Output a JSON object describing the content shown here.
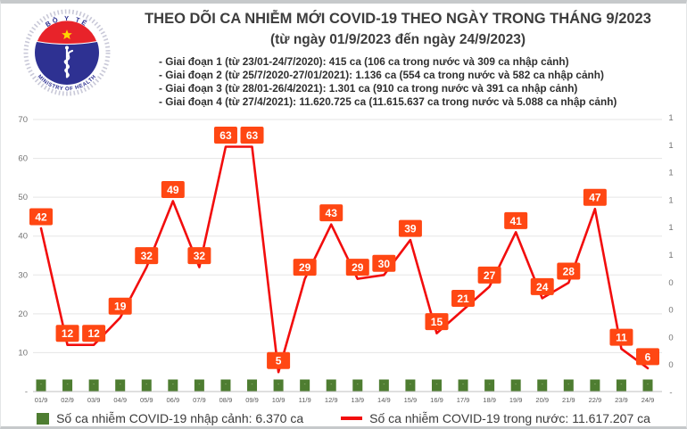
{
  "header": {
    "title": "THEO DÕI CA NHIỄM MỚI COVID-19 THEO NGÀY TRONG THÁNG 9/2023",
    "subtitle": "(từ ngày 01/9/2023 đến ngày 24/9/2023)",
    "stages": [
      "- Giai đoạn 1 (từ 23/01-24/7/2020): 415 ca (106 ca trong nước và 309 ca nhập cảnh)",
      "- Giai đoạn 2 (từ 25/7/2020-27/01/2021): 1.136 ca (554 ca trong nước và 582 ca nhập cảnh)",
      "- Giai đoạn 3 (từ 28/01-26/4/2021): 1.301 ca (910 ca trong nước và 391 ca nhập cảnh)",
      "- Giai đoạn 4 (từ 27/4/2021): 11.620.725 ca (11.615.637 ca trong nước và 5.088 ca nhập cảnh)"
    ]
  },
  "logo": {
    "top_text": "BỘ Y TẾ",
    "bottom_text": "MINISTRY OF HEALTH"
  },
  "legend": {
    "imported": "Số ca nhiễm COVID-19 nhập cảnh: 6.370 ca",
    "domestic": "Số ca nhiễm COVID-19 trong nước: 11.617.207 ca"
  },
  "colors": {
    "line": "#f20d0d",
    "label_bg": "#ff4713",
    "label_text": "#ffffff",
    "bar": "#4e7d31",
    "bar_dash": "#b9cf9b",
    "grid": "#e5e5e5",
    "axis": "#bfbfbf",
    "tick": "#737373",
    "xlabel": "#595959"
  },
  "chart_data": {
    "type": "line",
    "title": "THEO DÕI CA NHIỄM MỚI COVID-19 THEO NGÀY TRONG THÁNG 9/2023",
    "categories": [
      "01/9",
      "02/9",
      "03/9",
      "04/9",
      "05/9",
      "06/9",
      "07/9",
      "08/9",
      "09/9",
      "10/9",
      "11/9",
      "12/9",
      "13/9",
      "14/9",
      "15/9",
      "16/9",
      "17/9",
      "18/9",
      "19/9",
      "20/9",
      "21/9",
      "22/9",
      "23/9",
      "24/9"
    ],
    "series": [
      {
        "name": "Số ca nhiễm COVID-19 trong nước",
        "type": "line",
        "values": [
          42,
          12,
          12,
          19,
          32,
          49,
          32,
          63,
          63,
          5,
          29,
          43,
          29,
          30,
          39,
          15,
          21,
          27,
          41,
          24,
          28,
          47,
          11,
          6
        ],
        "data_labels": true
      },
      {
        "name": "Số ca nhiễm COVID-19 nhập cảnh",
        "type": "bar",
        "values": [
          0,
          0,
          0,
          0,
          0,
          0,
          0,
          0,
          0,
          0,
          0,
          0,
          0,
          0,
          0,
          0,
          0,
          0,
          0,
          0,
          0,
          0,
          0,
          0
        ],
        "value_label": "-"
      }
    ],
    "left_axis": {
      "min": 0,
      "max": 70,
      "tick_labels": [
        "70",
        "60",
        "50",
        "40",
        "30",
        "20",
        "10",
        "-"
      ]
    },
    "right_axis": {
      "tick_labels": [
        "1",
        "1",
        "1",
        "1",
        "1",
        "1",
        "0",
        "0",
        "0",
        "0",
        "-"
      ]
    },
    "grid": true,
    "legend_position": "bottom"
  }
}
